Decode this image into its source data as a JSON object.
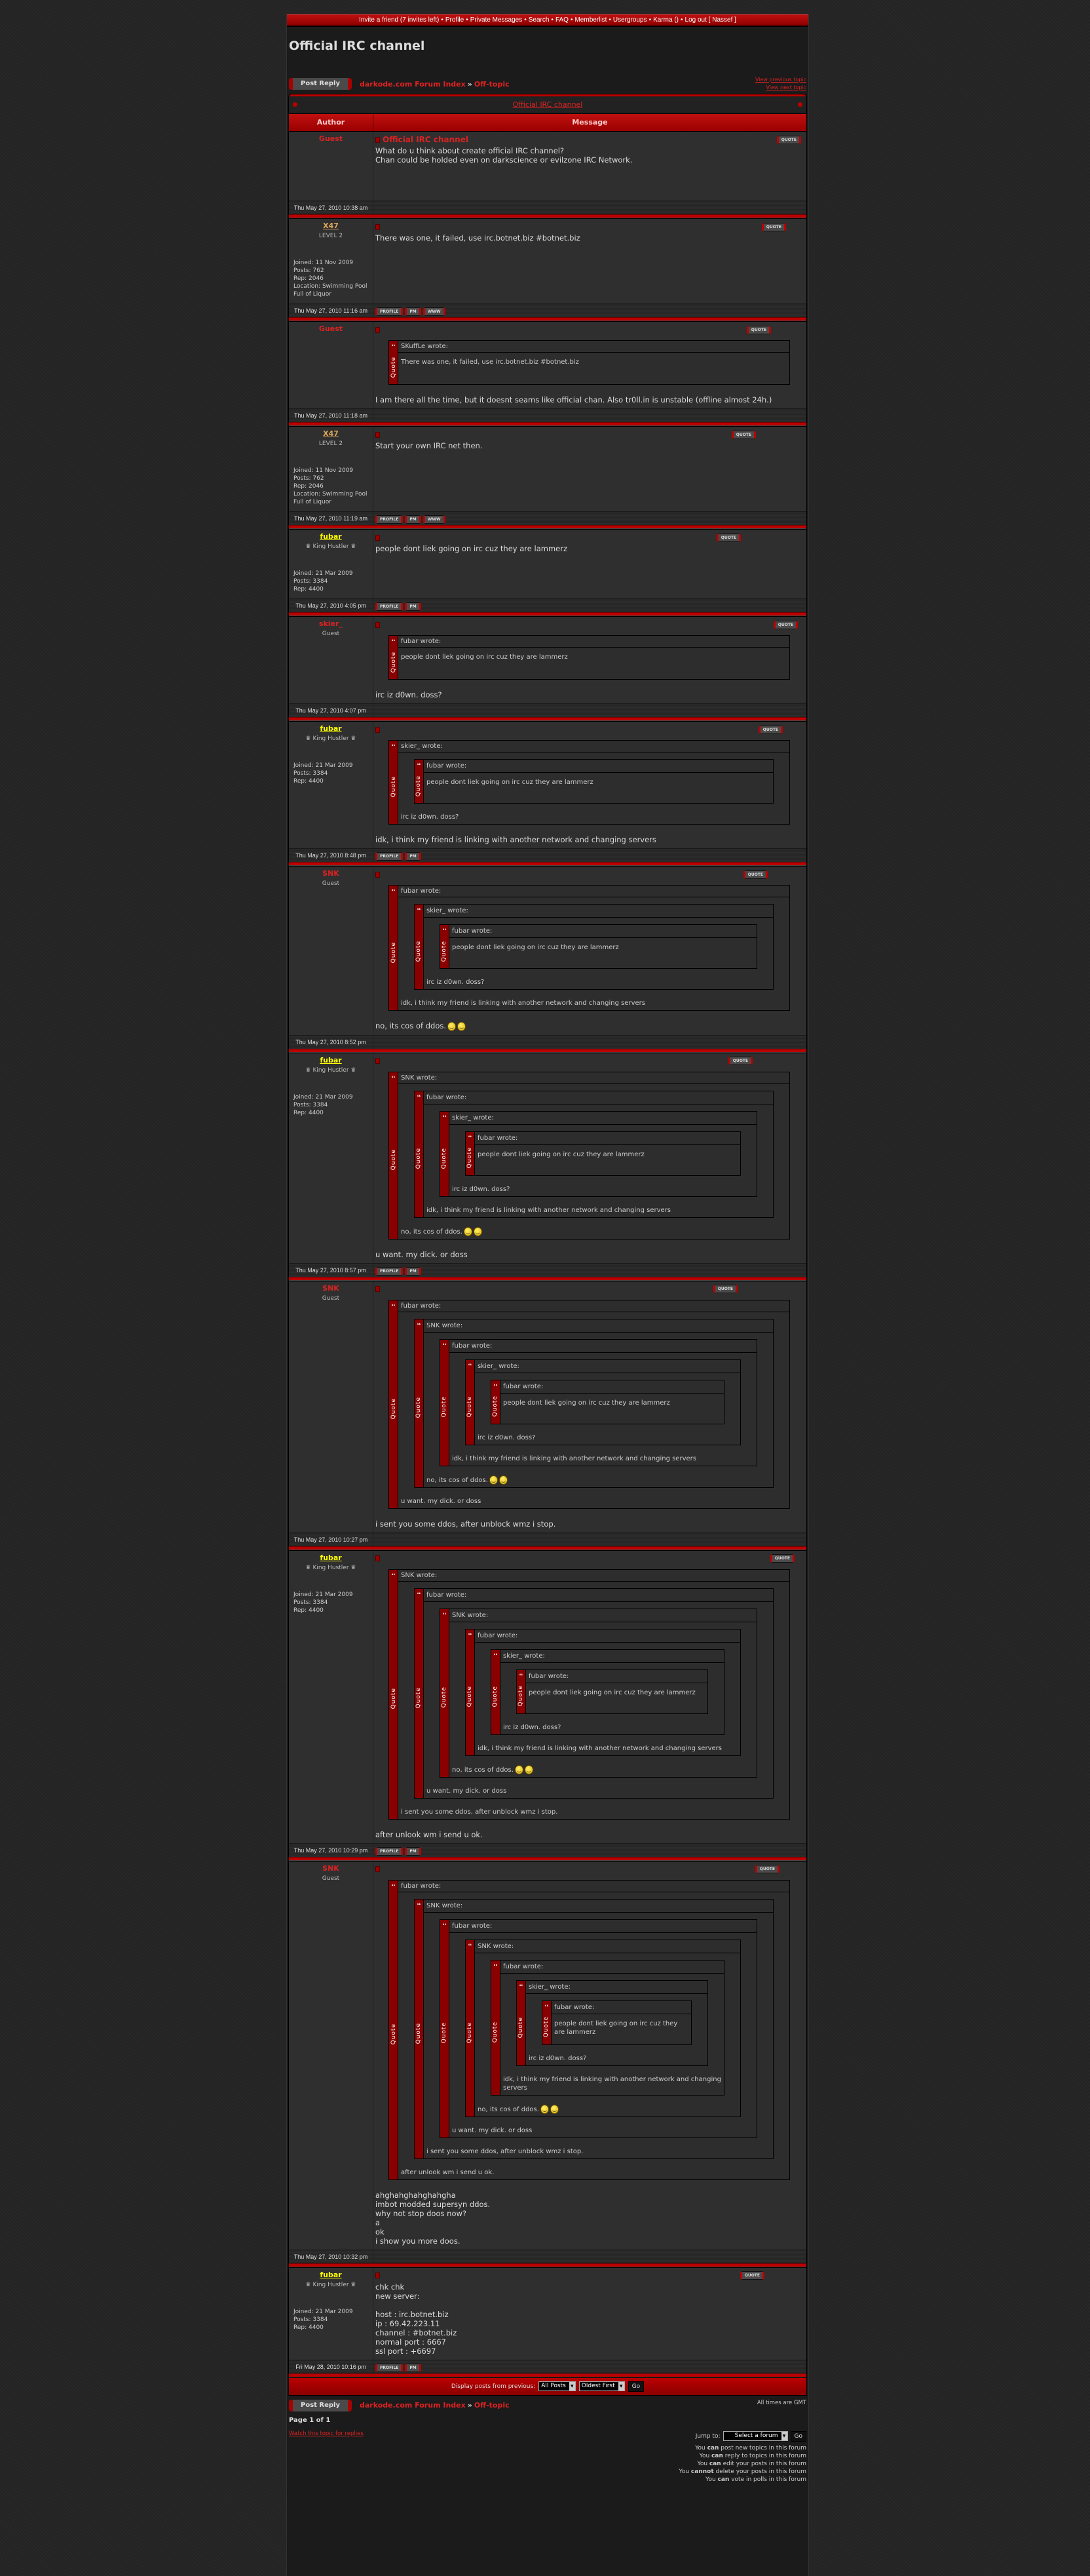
{
  "topnav": [
    "Invite a friend (7 invites left)",
    "Profile",
    "Private Messages",
    "Search",
    "FAQ",
    "Memberlist",
    "Usergroups",
    "Karma ()",
    "Log out [ Nassef ]"
  ],
  "page_title": "Official IRC channel",
  "nav": {
    "post_reply": "Post Reply",
    "forum_index": "darkode.com Forum Index",
    "raquo": "»",
    "forum": "Off-topic",
    "prev_topic": "View previous topic",
    "next_topic": "View next topic"
  },
  "table": {
    "topic_title": "Official IRC channel",
    "col_author": "Author",
    "col_message": "Message"
  },
  "labels": {
    "wrote": " wrote:",
    "quote_vertical": "Quote",
    "quote_button": "QUOTE"
  },
  "colors": {
    "accent": "#bb0000",
    "link": "#dd2222",
    "fubar": "#ffff00",
    "x47": "#d9a55a"
  },
  "posts": [
    {
      "author": "Guest",
      "style": "guest",
      "rank": "",
      "details": "",
      "subject": "Official IRC channel",
      "text": "What do u think about create official IRC channel?\nChan could be holded even on darkscience or evilzone IRC Network.",
      "date": "Thu May 27, 2010 10:38 am",
      "buttons": []
    },
    {
      "author": "X47",
      "style": "x47",
      "rank": "LEVEL 2",
      "details": "Joined: 11 Nov 2009\nPosts: 762\nRep: 2046\nLocation: Swimming Pool Full of Liquor",
      "text": "There was one, it failed, use irc.botnet.biz #botnet.biz",
      "date": "Thu May 27, 2010 11:16 am",
      "buttons": [
        "PROFILE",
        "PM",
        "WWW"
      ]
    },
    {
      "author": "Guest",
      "style": "guest",
      "rank": "",
      "details": "",
      "quote": {
        "author": "SKuffLe",
        "text": "There was one, it failed, use irc.botnet.biz #botnet.biz"
      },
      "text": "I am there all the time, but it doesnt seams like official chan. Also tr0ll.in is unstable (offline almost 24h.)",
      "date": "Thu May 27, 2010 11:18 am",
      "buttons": []
    },
    {
      "author": "X47",
      "style": "x47",
      "rank": "LEVEL 2",
      "details": "Joined: 11 Nov 2009\nPosts: 762\nRep: 2046\nLocation: Swimming Pool Full of Liquor",
      "text": "Start your own IRC net then.",
      "date": "Thu May 27, 2010 11:19 am",
      "buttons": [
        "PROFILE",
        "PM",
        "WWW"
      ]
    },
    {
      "author": "fubar",
      "style": "fubar",
      "rank": "King Hustler",
      "details": "Joined: 21 Mar 2009\nPosts: 3384\nRep: 4400",
      "text": "people dont liek going on irc cuz they are lammerz",
      "date": "Thu May 27, 2010 4:05 pm",
      "buttons": [
        "PROFILE",
        "PM"
      ]
    },
    {
      "author": "skier_",
      "style": "guest",
      "rank": "Guest",
      "details": "",
      "quote": {
        "author": "fubar",
        "text": "people dont liek going on irc cuz they are lammerz"
      },
      "text": "irc iz d0wn. doss?",
      "date": "Thu May 27, 2010 4:07 pm",
      "buttons": []
    },
    {
      "author": "fubar",
      "style": "fubar",
      "rank": "King Hustler",
      "details": "Joined: 21 Mar 2009\nPosts: 3384\nRep: 4400",
      "quote": {
        "author": "skier_",
        "quote": {
          "author": "fubar",
          "text": "people dont liek going on irc cuz they are lammerz"
        },
        "text": "irc iz d0wn. doss?"
      },
      "text": "idk, i think my friend is linking with another network and changing servers",
      "date": "Thu May 27, 2010 8:48 pm",
      "buttons": [
        "PROFILE",
        "PM"
      ]
    },
    {
      "author": "SNK",
      "style": "guest",
      "rank": "Guest",
      "details": "",
      "quote": {
        "author": "fubar",
        "quote": {
          "author": "skier_",
          "quote": {
            "author": "fubar",
            "text": "people dont liek going on irc cuz they are lammerz"
          },
          "text": "irc iz d0wn. doss?"
        },
        "text": "idk, i think my friend is linking with another network and changing servers"
      },
      "text": "no, its cos of ddos.",
      "smileys": [
        "shocked-smiley-icon",
        "grin-smiley-icon"
      ],
      "date": "Thu May 27, 2010 8:52 pm",
      "buttons": []
    },
    {
      "author": "fubar",
      "style": "fubar",
      "rank": "King Hustler",
      "details": "Joined: 21 Mar 2009\nPosts: 3384\nRep: 4400",
      "quote": {
        "author": "SNK",
        "quote": {
          "author": "fubar",
          "quote": {
            "author": "skier_",
            "quote": {
              "author": "fubar",
              "text": "people dont liek going on irc cuz they are lammerz"
            },
            "text": "irc iz d0wn. doss?"
          },
          "text": "idk, i think my friend is linking with another network and changing servers"
        },
        "text": "no, its cos of ddos.",
        "smileys": [
          "shocked-smiley-icon",
          "grin-smiley-icon"
        ]
      },
      "text": "u want. my dick. or doss",
      "date": "Thu May 27, 2010 8:57 pm",
      "buttons": [
        "PROFILE",
        "PM"
      ]
    },
    {
      "author": "SNK",
      "style": "guest",
      "rank": "Guest",
      "details": "",
      "quote": {
        "author": "fubar",
        "quote": {
          "author": "SNK",
          "quote": {
            "author": "fubar",
            "quote": {
              "author": "skier_",
              "quote": {
                "author": "fubar",
                "text": "people dont liek going on irc cuz they are lammerz"
              },
              "text": "irc iz d0wn. doss?"
            },
            "text": "idk, i think my friend is linking with another network and changing servers"
          },
          "text": "no, its cos of ddos.",
          "smileys": [
            "shocked-smiley-icon",
            "grin-smiley-icon"
          ]
        },
        "text": "u want. my dick. or doss"
      },
      "text": "i sent you some ddos, after unblock wmz i stop.",
      "date": "Thu May 27, 2010 10:27 pm",
      "buttons": []
    },
    {
      "author": "fubar",
      "style": "fubar",
      "rank": "King Hustler",
      "details": "Joined: 21 Mar 2009\nPosts: 3384\nRep: 4400",
      "quote": {
        "author": "SNK",
        "quote": {
          "author": "fubar",
          "quote": {
            "author": "SNK",
            "quote": {
              "author": "fubar",
              "quote": {
                "author": "skier_",
                "quote": {
                  "author": "fubar",
                  "text": "people dont liek going on irc cuz they are lammerz"
                },
                "text": "irc iz d0wn. doss?"
              },
              "text": "idk, i think my friend is linking with another network and changing servers"
            },
            "text": "no, its cos of ddos.",
            "smileys": [
              "shocked-smiley-icon",
              "grin-smiley-icon"
            ]
          },
          "text": "u want. my dick. or doss"
        },
        "text": "i sent you some ddos, after unblock wmz i stop."
      },
      "text": "after unlook wm i send u ok.",
      "date": "Thu May 27, 2010 10:29 pm",
      "buttons": [
        "PROFILE",
        "PM"
      ]
    },
    {
      "author": "SNK",
      "style": "guest",
      "rank": "Guest",
      "details": "",
      "quote": {
        "author": "fubar",
        "quote": {
          "author": "SNK",
          "quote": {
            "author": "fubar",
            "quote": {
              "author": "SNK",
              "quote": {
                "author": "fubar",
                "quote": {
                  "author": "skier_",
                  "quote": {
                    "author": "fubar",
                    "text": "people dont liek going on irc cuz they are lammerz"
                  },
                  "text": "irc iz d0wn. doss?"
                },
                "text": "idk, i think my friend is linking with another network and changing servers"
              },
              "text": "no, its cos of ddos.",
              "smileys": [
                "shocked-smiley-icon",
                "grin-smiley-icon"
              ]
            },
            "text": "u want. my dick. or doss"
          },
          "text": "i sent you some ddos, after unblock wmz i stop."
        },
        "text": "after unlook wm i send u ok."
      },
      "text": "ahghahghahghahgha\nimbot modded supersyn ddos.\nwhy not stop doos now?\na\nok\ni show you more doos.",
      "date": "Thu May 27, 2010 10:32 pm",
      "buttons": []
    },
    {
      "author": "fubar",
      "style": "fubar",
      "rank": "King Hustler",
      "details": "Joined: 21 Mar 2009\nPosts: 3384\nRep: 4400",
      "text": "chk chk\nnew server:\n\nhost : irc.botnet.biz\nip : 69.42.223.11\nchannel : #botnet.biz\nnormal port : 6667\nssl port : +6697",
      "date": "Fri May 28, 2010 10:16 pm",
      "buttons": [
        "PROFILE",
        "PM"
      ]
    }
  ],
  "footer": {
    "display_label": "Display posts from previous:",
    "range_value": "All Posts",
    "order_value": "Oldest First",
    "go": "Go",
    "timezone": "All times are GMT",
    "page_info": "Page 1 of 1",
    "watch": "Watch this topic for replies",
    "jump_label": "Jump to:",
    "jump_value": "Select a forum",
    "permissions": [
      {
        "pre": "You ",
        "bold": "can",
        "post": " post new topics in this forum"
      },
      {
        "pre": "You ",
        "bold": "can",
        "post": " reply to topics in this forum"
      },
      {
        "pre": "You ",
        "bold": "can",
        "post": " edit your posts in this forum"
      },
      {
        "pre": "You ",
        "bold": "cannot",
        "post": " delete your posts in this forum"
      },
      {
        "pre": "You ",
        "bold": "can",
        "post": " vote in polls in this forum"
      }
    ]
  }
}
